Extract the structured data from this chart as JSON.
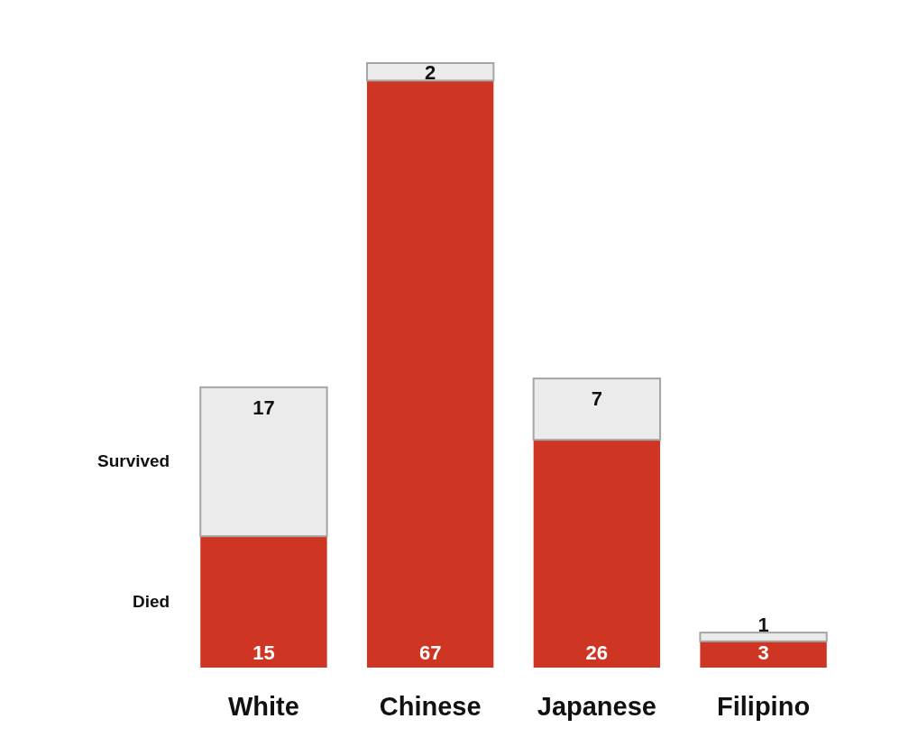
{
  "chart_data": {
    "type": "bar",
    "stacked": true,
    "data_labels": true,
    "categories": [
      "White",
      "Chinese",
      "Japanese",
      "Filipino"
    ],
    "series": [
      {
        "name": "Died",
        "color": "#cf3523",
        "values": [
          15,
          67,
          26,
          3
        ]
      },
      {
        "name": "Survived",
        "color": "#ebebeb",
        "values": [
          17,
          2,
          7,
          1
        ]
      }
    ]
  }
}
